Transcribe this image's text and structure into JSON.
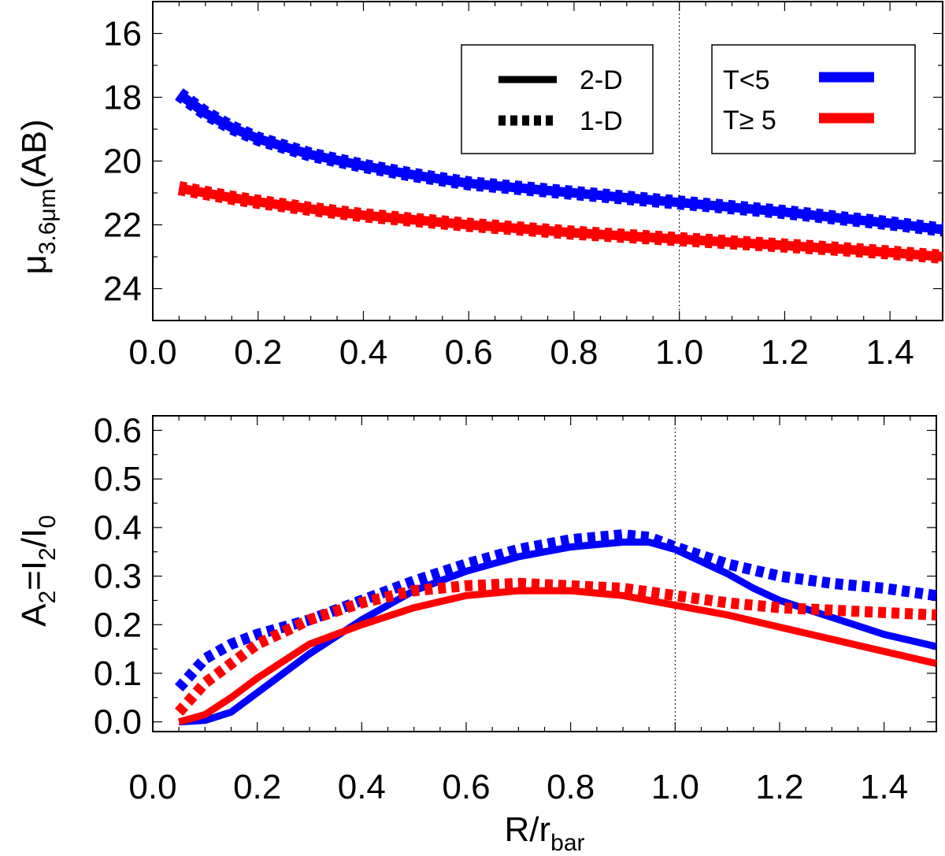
{
  "chart_data": [
    {
      "type": "line",
      "panel": "top",
      "xlabel": "",
      "ylabel": {
        "base": "μ",
        "sub": "3.6μm",
        "suffix": "(AB)"
      },
      "xlim": [
        0.0,
        1.5
      ],
      "ylim": [
        25,
        15
      ],
      "y_inverted": true,
      "xticks": [
        "0.0",
        "0.2",
        "0.4",
        "0.6",
        "0.8",
        "1.0",
        "1.2",
        "1.4"
      ],
      "yticks": [
        "16",
        "18",
        "20",
        "22",
        "24"
      ],
      "vline_x": 1.0,
      "legends": {
        "style": [
          {
            "label": "2-D",
            "line": "solid"
          },
          {
            "label": "1-D",
            "line": "dotted"
          }
        ],
        "type": [
          {
            "label": "T<5",
            "color": "#0000ff"
          },
          {
            "label": "T≥ 5",
            "color": "#ff0000"
          }
        ]
      },
      "x": [
        0.05,
        0.1,
        0.15,
        0.2,
        0.3,
        0.4,
        0.5,
        0.6,
        0.7,
        0.8,
        0.9,
        1.0,
        1.1,
        1.2,
        1.3,
        1.4,
        1.5
      ],
      "series": [
        {
          "name": "T<5 2-D",
          "color": "#0000ff",
          "style": "solid",
          "values": [
            17.9,
            18.5,
            18.95,
            19.3,
            19.8,
            20.15,
            20.45,
            20.7,
            20.85,
            21.0,
            21.15,
            21.3,
            21.45,
            21.6,
            21.78,
            21.95,
            22.15
          ]
        },
        {
          "name": "T<5 1-D",
          "color": "#0000ff",
          "style": "dotted",
          "values": [
            17.9,
            18.5,
            18.95,
            19.3,
            19.8,
            20.15,
            20.45,
            20.7,
            20.85,
            21.0,
            21.15,
            21.3,
            21.45,
            21.6,
            21.78,
            21.95,
            22.15
          ]
        },
        {
          "name": "T≥ 5 2-D",
          "color": "#ff0000",
          "style": "solid",
          "values": [
            20.85,
            21.0,
            21.15,
            21.28,
            21.5,
            21.7,
            21.85,
            22.0,
            22.12,
            22.25,
            22.35,
            22.45,
            22.55,
            22.65,
            22.75,
            22.87,
            23.0
          ]
        },
        {
          "name": "T≥ 5 1-D",
          "color": "#ff0000",
          "style": "dotted",
          "values": [
            20.85,
            21.0,
            21.15,
            21.28,
            21.5,
            21.7,
            21.85,
            22.0,
            22.12,
            22.25,
            22.35,
            22.45,
            22.55,
            22.65,
            22.75,
            22.87,
            23.0
          ]
        }
      ]
    },
    {
      "type": "line",
      "panel": "bottom",
      "xlabel": {
        "base": "R/r",
        "sub": "bar"
      },
      "ylabel": {
        "p1": "A",
        "s1": "2",
        "p2": "=I",
        "s2": "2",
        "p3": "/I",
        "s3": "0"
      },
      "xlim": [
        0.0,
        1.5
      ],
      "ylim": [
        -0.02,
        0.63
      ],
      "xticks": [
        "0.0",
        "0.2",
        "0.4",
        "0.6",
        "0.8",
        "1.0",
        "1.2",
        "1.4"
      ],
      "yticks": [
        "0.0",
        "0.1",
        "0.2",
        "0.3",
        "0.4",
        "0.5",
        "0.6"
      ],
      "vline_x": 1.0,
      "series": [
        {
          "name": "T<5 2-D",
          "color": "#0000ff",
          "style": "solid",
          "x": [
            0.05,
            0.1,
            0.15,
            0.2,
            0.3,
            0.4,
            0.5,
            0.6,
            0.7,
            0.8,
            0.9,
            0.95,
            1.0,
            1.05,
            1.1,
            1.15,
            1.2,
            1.3,
            1.4,
            1.5
          ],
          "values": [
            0.0,
            0.003,
            0.02,
            0.06,
            0.14,
            0.21,
            0.27,
            0.31,
            0.34,
            0.36,
            0.37,
            0.37,
            0.355,
            0.33,
            0.305,
            0.275,
            0.25,
            0.215,
            0.18,
            0.155
          ]
        },
        {
          "name": "T<5 1-D",
          "color": "#0000ff",
          "style": "dotted",
          "x": [
            0.05,
            0.1,
            0.15,
            0.2,
            0.3,
            0.4,
            0.5,
            0.6,
            0.7,
            0.8,
            0.9,
            0.95,
            1.0,
            1.1,
            1.2,
            1.3,
            1.4,
            1.5
          ],
          "values": [
            0.07,
            0.13,
            0.16,
            0.18,
            0.21,
            0.25,
            0.29,
            0.325,
            0.355,
            0.375,
            0.385,
            0.38,
            0.36,
            0.325,
            0.3,
            0.285,
            0.275,
            0.26
          ]
        },
        {
          "name": "T≥ 5 2-D",
          "color": "#ff0000",
          "style": "solid",
          "x": [
            0.05,
            0.1,
            0.15,
            0.2,
            0.3,
            0.4,
            0.5,
            0.6,
            0.7,
            0.8,
            0.9,
            1.0,
            1.1,
            1.2,
            1.3,
            1.4,
            1.5
          ],
          "values": [
            0.0,
            0.015,
            0.05,
            0.09,
            0.16,
            0.2,
            0.235,
            0.26,
            0.27,
            0.27,
            0.26,
            0.24,
            0.22,
            0.195,
            0.17,
            0.145,
            0.12
          ]
        },
        {
          "name": "T≥ 5 1-D",
          "color": "#ff0000",
          "style": "dotted",
          "x": [
            0.05,
            0.1,
            0.15,
            0.2,
            0.3,
            0.4,
            0.5,
            0.6,
            0.7,
            0.8,
            0.9,
            1.0,
            1.1,
            1.2,
            1.3,
            1.4,
            1.5
          ],
          "values": [
            0.02,
            0.08,
            0.12,
            0.16,
            0.21,
            0.245,
            0.27,
            0.28,
            0.285,
            0.28,
            0.275,
            0.26,
            0.245,
            0.235,
            0.23,
            0.225,
            0.22
          ]
        }
      ]
    }
  ]
}
